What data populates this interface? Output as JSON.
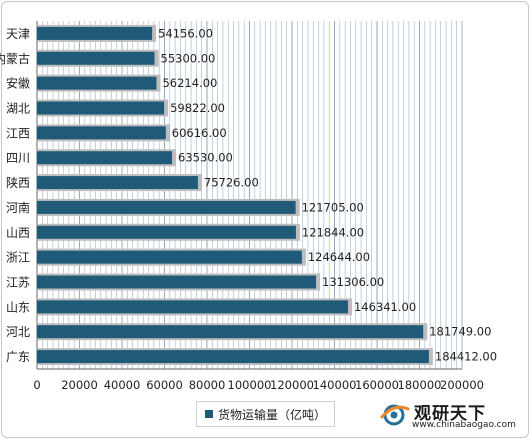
{
  "chart_data": {
    "type": "bar",
    "orientation": "horizontal",
    "categories": [
      "天津",
      "内蒙古",
      "安徽",
      "湖北",
      "江西",
      "四川",
      "陕西",
      "河南",
      "山西",
      "浙江",
      "江苏",
      "山东",
      "河北",
      "广东"
    ],
    "series": [
      {
        "name": "货物运输量（亿吨）",
        "values": [
          54156.0,
          55300.0,
          56214.0,
          59822.0,
          60616.0,
          63530.0,
          75726.0,
          121705.0,
          121844.0,
          124644.0,
          131306.0,
          146341.0,
          181749.0,
          184412.0
        ],
        "labels": [
          "54156.00",
          "55300.00",
          "56214.00",
          "59822.00",
          "60616.00",
          "63530.00",
          "75726.00",
          "121705.00",
          "121844.00",
          "124644.00",
          "131306.00",
          "146341.00",
          "181749.00",
          "184412.00"
        ]
      }
    ],
    "xlim": [
      0,
      200000
    ],
    "xticks": [
      "0",
      "20000",
      "40000",
      "60000",
      "80000",
      "100000",
      "120000",
      "140000",
      "160000",
      "180000",
      "200000"
    ],
    "grid": true,
    "legend_position": "bottom"
  },
  "colors": {
    "bar": "#1f5b78",
    "bar_shadow": "#bdbdbd",
    "grid": "#9fb3c4",
    "plot_bg": "#ffffff"
  },
  "legend": {
    "label": "货物运输量（亿吨）"
  },
  "brand": {
    "name": "观研天下",
    "url": "www.chinabaogao.com",
    "icon": "globe-swoosh-icon"
  }
}
